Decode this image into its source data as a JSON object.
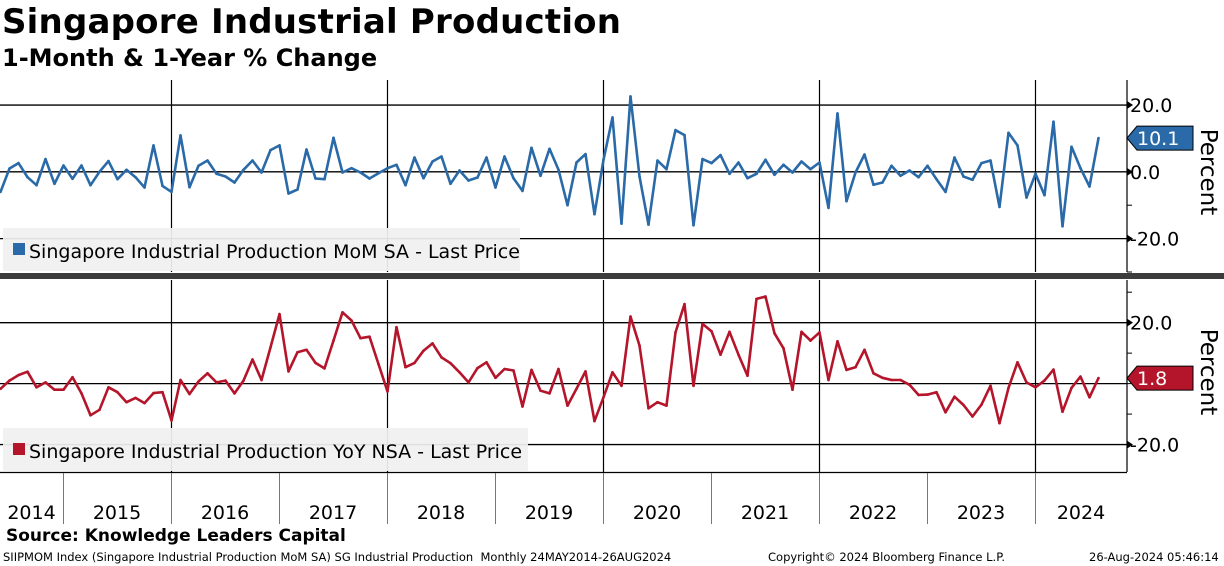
{
  "header": {
    "title": "Singapore Industrial Production",
    "subtitle": "1-Month & 1-Year % Change"
  },
  "footer": {
    "source": "Source: Knowledge Leaders Capital",
    "ticker_info": "SIIPMOM Index (Singapore Industrial Production MoM SA) SG Industrial Production  Monthly 24MAY2014-26AUG2024",
    "copyright": "Copyright© 2024 Bloomberg Finance L.P.",
    "timestamp": "26-Aug-2024 05:46:14"
  },
  "colors": {
    "mom": "#2a6aa8",
    "yoy": "#b5152b"
  },
  "chart_data": [
    {
      "type": "line",
      "title": "Singapore Industrial Production MoM SA - Last Price",
      "legend": "Singapore Industrial Production MoM SA - Last Price",
      "legend_placement": "bottom-left",
      "ylabel": "Percent",
      "ylim": [
        -30,
        27.5
      ],
      "yticks": [
        "20.0",
        "0.0",
        "-20.0"
      ],
      "ytick_values": [
        20,
        0,
        -20
      ],
      "last_value": "10.1",
      "x_start": "2014-06",
      "x_frequency": "monthly",
      "values": [
        -6,
        1,
        2.6,
        -1.6,
        -4,
        3.8,
        -3.6,
        1.9,
        -2.1,
        1.9,
        -4,
        0,
        3.2,
        -2.2,
        0.6,
        -1.6,
        -4.7,
        7.9,
        -4.2,
        -6,
        10.9,
        -4.6,
        1.8,
        3.4,
        -0.6,
        -1.4,
        -3.2,
        0.6,
        3.4,
        -0.2,
        6.5,
        7.9,
        -6.5,
        -5.3,
        6.7,
        -2,
        -2.2,
        10.2,
        -0.2,
        1.1,
        -0.2,
        -2,
        -0.4,
        1.1,
        2.1,
        -4,
        4.3,
        -1.9,
        3.1,
        4.6,
        -3.6,
        0.4,
        -2.6,
        -1.7,
        4.3,
        -4.7,
        4.6,
        -1.9,
        -5.7,
        7.2,
        -1.2,
        6.9,
        0.6,
        -10,
        2.8,
        5.3,
        -12.7,
        3.6,
        16.3,
        -15.5,
        22.6,
        -1.4,
        -15.8,
        3.4,
        0.8,
        12.5,
        11,
        -16,
        3.8,
        2.6,
        5,
        -0.6,
        2.8,
        -1.9,
        -0.6,
        3.6,
        -0.9,
        2.1,
        -0.2,
        3.1,
        0.8,
        2.8,
        -10.8,
        17.5,
        -8.8,
        -0.2,
        5.2,
        -3.9,
        -3.2,
        1.8,
        -1.2,
        0.4,
        -1.6,
        1.8,
        -2.2,
        -6,
        4.3,
        -1.4,
        -2.4,
        2.6,
        3.4,
        -10.5,
        11.7,
        7.9,
        -7.7,
        -0.6,
        -7,
        15,
        -16.3,
        7.5,
        1.1,
        -4.4,
        10.1
      ]
    },
    {
      "type": "line",
      "title": "Singapore Industrial Production YoY NSA - Last Price",
      "legend": "Singapore Industrial Production YoY NSA - Last Price",
      "legend_placement": "bottom-left",
      "ylabel": "Percent",
      "ylim": [
        -29,
        34
      ],
      "yticks": [
        "20.0",
        "-20.0"
      ],
      "ytick_values": [
        20,
        -20
      ],
      "last_value": "1.8",
      "x_start": "2014-06",
      "x_frequency": "monthly",
      "values": [
        -1.7,
        1,
        2.8,
        3.9,
        -1.2,
        0.4,
        -2,
        -2,
        2.1,
        -3.2,
        -10.4,
        -8.6,
        -1.2,
        -2.8,
        -6.1,
        -4.7,
        -6.4,
        -3.1,
        -2.8,
        -12.1,
        1.2,
        -3.4,
        0.7,
        3.4,
        0.4,
        1,
        -3.2,
        1,
        7.9,
        1.2,
        11.9,
        22.8,
        4,
        10.3,
        11.1,
        6.8,
        5,
        14.1,
        23.4,
        20.7,
        14.9,
        15.4,
        6.4,
        -2.6,
        18.5,
        5.4,
        6.8,
        10.8,
        13.2,
        8.6,
        6.7,
        3.7,
        0.4,
        5.1,
        7,
        1.9,
        4.8,
        4.3,
        -7.5,
        4.5,
        -2.3,
        -3.2,
        4.8,
        -7.2,
        -1.7,
        4,
        -12.3,
        -4.5,
        3.7,
        -0.7,
        22,
        12.5,
        -8.1,
        -6.1,
        -7.2,
        16.8,
        26.1,
        -0.7,
        19.6,
        17.2,
        9.5,
        17,
        9.5,
        2.6,
        27.8,
        28.6,
        16.5,
        11.6,
        -2,
        17,
        14.1,
        16.8,
        1.2,
        13.9,
        4.5,
        5.4,
        11.1,
        3.4,
        1.9,
        1.2,
        1.2,
        -0.4,
        -3.7,
        -3.6,
        -2.8,
        -9.4,
        -4.3,
        -7,
        -10.8,
        -6.9,
        -0.7,
        -13,
        -1.4,
        7,
        0.4,
        -1.2,
        1,
        4.6,
        -9.2,
        -1.4,
        2.3,
        -4.5,
        1.8
      ]
    }
  ],
  "x_axis": {
    "years": [
      "2014",
      "2015",
      "2016",
      "2017",
      "2018",
      "2019",
      "2020",
      "2021",
      "2022",
      "2023",
      "2024"
    ]
  }
}
